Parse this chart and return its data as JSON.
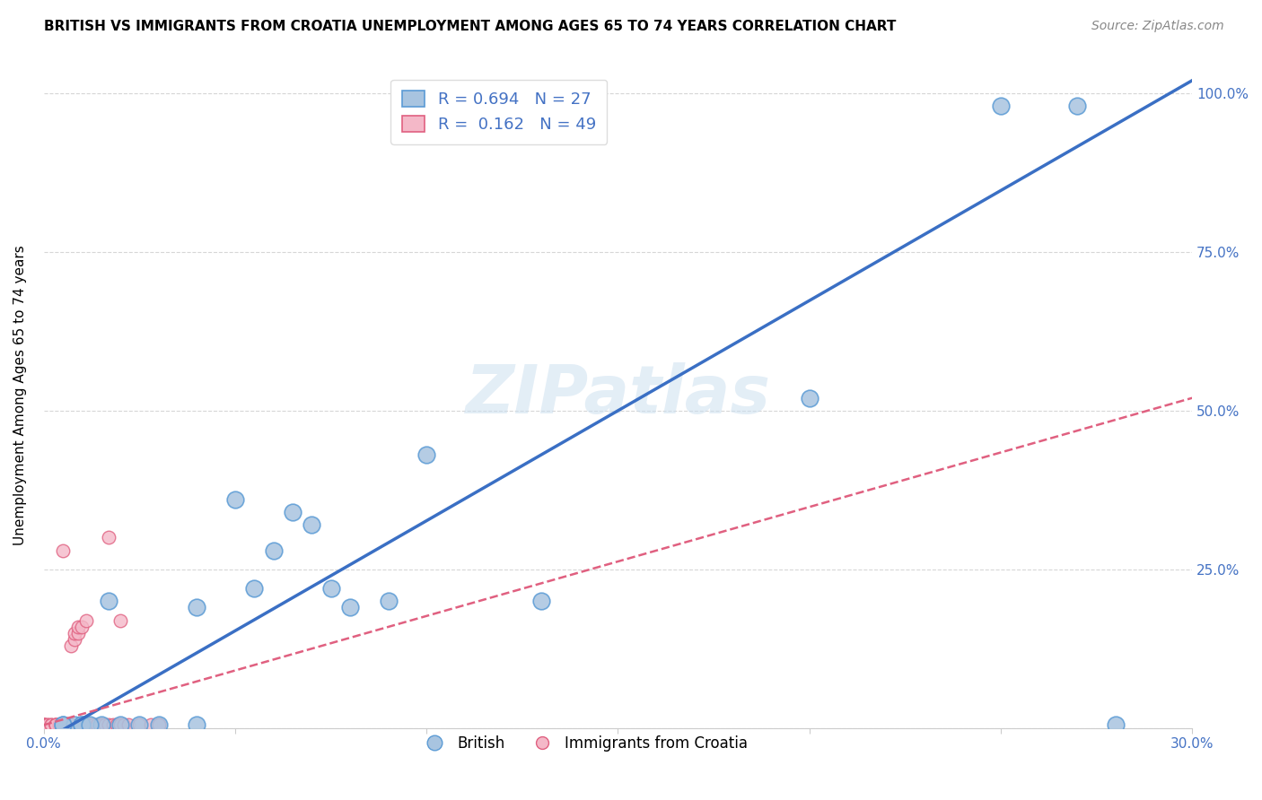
{
  "title": "BRITISH VS IMMIGRANTS FROM CROATIA UNEMPLOYMENT AMONG AGES 65 TO 74 YEARS CORRELATION CHART",
  "source": "Source: ZipAtlas.com",
  "ylabel": "Unemployment Among Ages 65 to 74 years",
  "xlim": [
    0.0,
    0.3
  ],
  "ylim": [
    0.0,
    1.05
  ],
  "xticks": [
    0.0,
    0.05,
    0.1,
    0.15,
    0.2,
    0.25,
    0.3
  ],
  "xticklabels": [
    "0.0%",
    "",
    "",
    "",
    "",
    "",
    "30.0%"
  ],
  "ytick_positions": [
    0.0,
    0.25,
    0.5,
    0.75,
    1.0
  ],
  "ytick_labels_right": [
    "",
    "25.0%",
    "50.0%",
    "75.0%",
    "100.0%"
  ],
  "british_color": "#a8c4e0",
  "british_edge_color": "#5b9bd5",
  "croatia_color": "#f4b8c8",
  "croatia_edge_color": "#e06080",
  "trendline_british_color": "#3a6fc4",
  "trendline_croatia_color": "#e06080",
  "watermark": "ZIPatlas",
  "title_fontsize": 11,
  "source_fontsize": 10,
  "axis_label_fontsize": 11,
  "tick_fontsize": 11,
  "legend_fontsize": 13,
  "british_x": [
    0.005,
    0.008,
    0.01,
    0.015,
    0.02,
    0.025,
    0.03,
    0.04,
    0.04,
    0.05,
    0.055,
    0.06,
    0.065,
    0.07,
    0.075,
    0.08,
    0.09,
    0.1,
    0.13,
    0.2,
    0.25,
    0.27,
    0.28,
    0.005,
    0.01,
    0.012,
    0.017
  ],
  "british_y": [
    0.005,
    0.005,
    0.005,
    0.005,
    0.005,
    0.005,
    0.005,
    0.005,
    0.19,
    0.36,
    0.22,
    0.28,
    0.34,
    0.32,
    0.22,
    0.19,
    0.2,
    0.43,
    0.2,
    0.52,
    0.98,
    0.98,
    0.005,
    0.005,
    0.005,
    0.005,
    0.2
  ],
  "croatia_x": [
    0.0,
    0.0,
    0.0,
    0.0,
    0.0,
    0.001,
    0.001,
    0.002,
    0.002,
    0.003,
    0.003,
    0.003,
    0.004,
    0.004,
    0.005,
    0.005,
    0.005,
    0.006,
    0.007,
    0.007,
    0.008,
    0.008,
    0.009,
    0.009,
    0.01,
    0.01,
    0.011,
    0.011,
    0.012,
    0.012,
    0.013,
    0.014,
    0.015,
    0.015,
    0.016,
    0.017,
    0.017,
    0.018,
    0.019,
    0.02,
    0.02,
    0.021,
    0.022,
    0.025,
    0.028,
    0.03,
    0.03,
    0.005,
    0.003
  ],
  "croatia_y": [
    0.005,
    0.005,
    0.005,
    0.005,
    0.005,
    0.005,
    0.005,
    0.005,
    0.005,
    0.005,
    0.005,
    0.005,
    0.005,
    0.005,
    0.005,
    0.005,
    0.005,
    0.005,
    0.005,
    0.13,
    0.14,
    0.15,
    0.15,
    0.16,
    0.16,
    0.005,
    0.005,
    0.17,
    0.005,
    0.005,
    0.005,
    0.005,
    0.005,
    0.005,
    0.005,
    0.3,
    0.005,
    0.005,
    0.005,
    0.005,
    0.17,
    0.005,
    0.005,
    0.005,
    0.005,
    0.005,
    0.005,
    0.28,
    0.005
  ],
  "trendline_british_x0": 0.0,
  "trendline_british_y0": -0.02,
  "trendline_british_x1": 0.3,
  "trendline_british_y1": 1.02,
  "trendline_croatia_x0": 0.0,
  "trendline_croatia_y0": 0.005,
  "trendline_croatia_x1": 0.3,
  "trendline_croatia_y1": 0.52
}
